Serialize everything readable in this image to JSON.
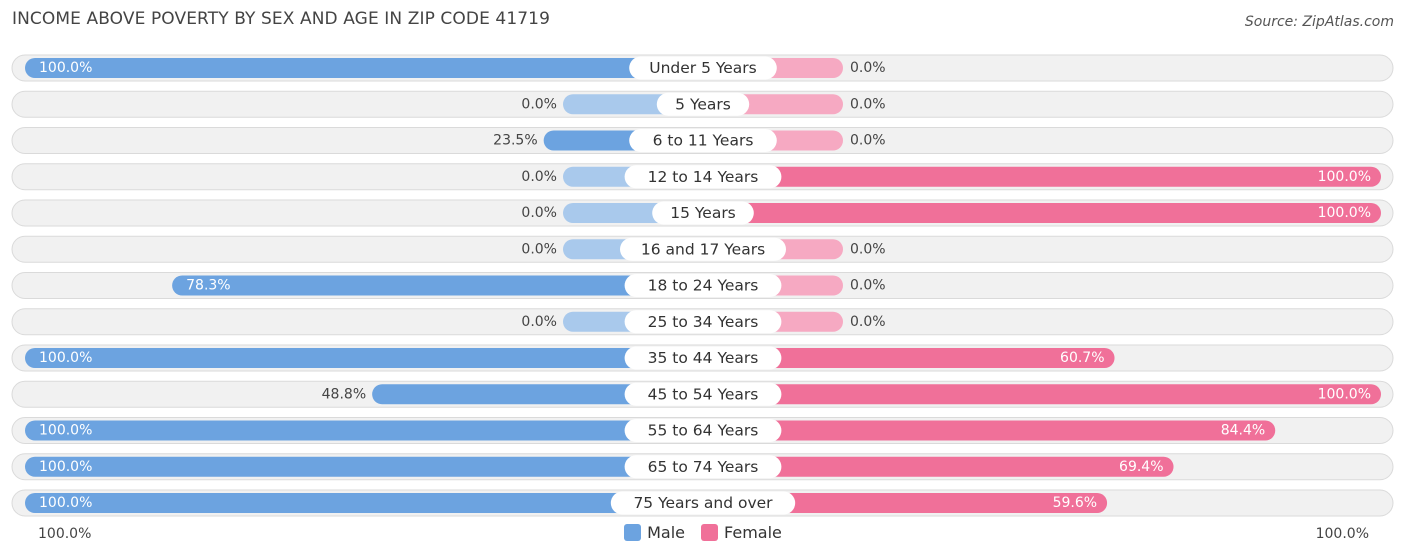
{
  "title": "INCOME ABOVE POVERTY BY SEX AND AGE IN ZIP CODE 41719",
  "source": "Source: ZipAtlas.com",
  "axis": {
    "left_label": "100.0%",
    "right_label": "100.0%"
  },
  "legend": [
    {
      "label": "Male",
      "color": "#6ca3e0"
    },
    {
      "label": "Female",
      "color": "#f07099"
    }
  ],
  "colors": {
    "male_strong": "#6ca3e0",
    "male_light": "#a9c9ec",
    "female_strong": "#f07099",
    "female_light": "#f6a9c2",
    "row_bg": "#f1f1f1",
    "row_border": "#dadada"
  },
  "chart_data": {
    "type": "bar",
    "orientation": "horizontal-diverging",
    "title": "INCOME ABOVE POVERTY BY SEX AND AGE IN ZIP CODE 41719",
    "xlim": [
      -100,
      100
    ],
    "legend_position": "bottom-center",
    "categories": [
      "Under 5 Years",
      "5 Years",
      "6 to 11 Years",
      "12 to 14 Years",
      "15 Years",
      "16 and 17 Years",
      "18 to 24 Years",
      "25 to 34 Years",
      "35 to 44 Years",
      "45 to 54 Years",
      "55 to 64 Years",
      "65 to 74 Years",
      "75 Years and over"
    ],
    "series": [
      {
        "name": "Male",
        "values": [
          100.0,
          0.0,
          23.5,
          0.0,
          0.0,
          0.0,
          78.3,
          0.0,
          100.0,
          48.8,
          100.0,
          100.0,
          100.0
        ],
        "labels": [
          "100.0%",
          "0.0%",
          "23.5%",
          "0.0%",
          "0.0%",
          "0.0%",
          "78.3%",
          "0.0%",
          "100.0%",
          "48.8%",
          "100.0%",
          "100.0%",
          "100.0%"
        ]
      },
      {
        "name": "Female",
        "values": [
          0.0,
          0.0,
          0.0,
          100.0,
          100.0,
          0.0,
          0.0,
          0.0,
          60.7,
          100.0,
          84.4,
          69.4,
          59.6
        ],
        "labels": [
          "0.0%",
          "0.0%",
          "0.0%",
          "100.0%",
          "100.0%",
          "0.0%",
          "0.0%",
          "0.0%",
          "60.7%",
          "100.0%",
          "84.4%",
          "69.4%",
          "59.6%"
        ]
      }
    ]
  }
}
